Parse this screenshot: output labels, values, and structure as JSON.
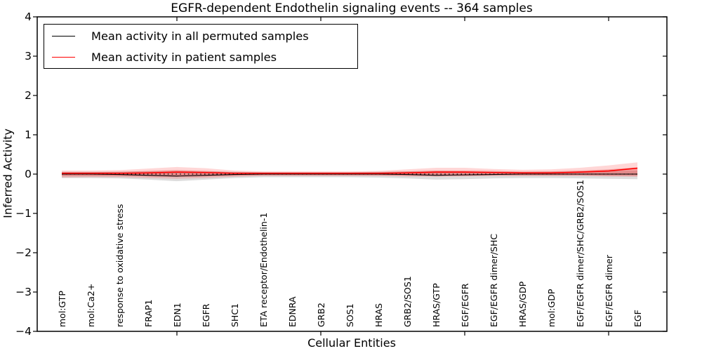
{
  "chart_data": {
    "type": "line",
    "title": "EGFR-dependent Endothelin signaling events -- 364 samples",
    "xlabel": "Cellular Entities",
    "ylabel": "Inferred Activity",
    "ylim": [
      -4,
      4
    ],
    "ytick_labels": [
      "4",
      "3",
      "2",
      "1",
      "0",
      "−1",
      "−2",
      "−3",
      "−4"
    ],
    "grid": false,
    "categories": [
      "mol:GTP",
      "mol:Ca2+",
      "response to oxidative stress",
      "FRAP1",
      "EDN1",
      "EGFR",
      "SHC1",
      "ETA receptor/Endothelin-1",
      "EDNRA",
      "GRB2",
      "SOS1",
      "HRAS",
      "GRB2/SOS1",
      "HRAS/GTP",
      "EGF/EGFR",
      "EGF/EGFR dimer/SHC",
      "HRAS/GDP",
      "mol:GDP",
      "EGF/EGFR dimer/SHC/GRB2/SOS1",
      "EGF/EGFR dimer",
      "EGF"
    ],
    "series": [
      {
        "name": "Mean activity in all permuted samples",
        "color": "#000000",
        "values": [
          0.0,
          0.0,
          -0.01,
          -0.03,
          -0.05,
          -0.03,
          -0.01,
          0.0,
          0.0,
          0.0,
          0.0,
          0.0,
          -0.01,
          -0.03,
          -0.02,
          -0.01,
          0.0,
          0.0,
          0.0,
          0.0,
          0.0
        ],
        "band_upper": [
          0.06,
          0.06,
          0.06,
          0.07,
          0.08,
          0.07,
          0.06,
          0.05,
          0.05,
          0.05,
          0.05,
          0.06,
          0.07,
          0.08,
          0.07,
          0.06,
          0.06,
          0.06,
          0.07,
          0.08,
          0.09
        ],
        "band_lower": [
          -0.1,
          -0.1,
          -0.11,
          -0.14,
          -0.18,
          -0.14,
          -0.1,
          -0.08,
          -0.08,
          -0.08,
          -0.08,
          -0.09,
          -0.11,
          -0.14,
          -0.13,
          -0.11,
          -0.1,
          -0.1,
          -0.11,
          -0.12,
          -0.13
        ]
      },
      {
        "name": "Mean activity in patient samples",
        "color": "#ff0000",
        "values": [
          0.02,
          0.02,
          0.02,
          0.03,
          0.05,
          0.04,
          0.02,
          0.02,
          0.02,
          0.02,
          0.02,
          0.02,
          0.03,
          0.05,
          0.05,
          0.04,
          0.03,
          0.03,
          0.05,
          0.08,
          0.15
        ],
        "band_upper": [
          0.09,
          0.09,
          0.1,
          0.14,
          0.18,
          0.15,
          0.09,
          0.07,
          0.07,
          0.07,
          0.07,
          0.08,
          0.12,
          0.16,
          0.16,
          0.13,
          0.11,
          0.12,
          0.16,
          0.22,
          0.3
        ],
        "band_lower": [
          -0.09,
          -0.08,
          -0.08,
          -0.1,
          -0.12,
          -0.1,
          -0.07,
          -0.05,
          -0.05,
          -0.05,
          -0.05,
          -0.05,
          -0.06,
          -0.07,
          -0.06,
          -0.05,
          -0.05,
          -0.05,
          -0.05,
          -0.06,
          -0.07
        ],
        "inner_band_upper": [
          0.05,
          0.05,
          0.06,
          0.08,
          0.1,
          0.08,
          0.05,
          0.04,
          0.04,
          0.04,
          0.04,
          0.05,
          0.07,
          0.09,
          0.09,
          0.08,
          0.06,
          0.07,
          0.09,
          0.12,
          0.17
        ],
        "inner_band_lower": [
          -0.05,
          -0.05,
          -0.05,
          -0.06,
          -0.07,
          -0.06,
          -0.04,
          -0.03,
          -0.03,
          -0.03,
          -0.03,
          -0.03,
          -0.04,
          -0.04,
          -0.04,
          -0.03,
          -0.03,
          -0.03,
          -0.03,
          -0.04,
          -0.04
        ]
      }
    ],
    "reference_line": {
      "y": 0,
      "style": "dotted",
      "color": "#000000"
    },
    "band_colors": {
      "permuted": "rgba(120,120,120,0.25)",
      "patient_outer": "rgba(255,0,0,0.16)",
      "patient_inner": "rgba(224,32,32,0.30)"
    },
    "major_x_tick_indices": [
      4,
      9,
      14,
      19
    ],
    "legend": {
      "position": "upper left",
      "entries": [
        {
          "label": "Mean activity in all permuted samples",
          "color": "#000000"
        },
        {
          "label": "Mean activity in patient samples",
          "color": "#ff0000"
        }
      ]
    }
  }
}
